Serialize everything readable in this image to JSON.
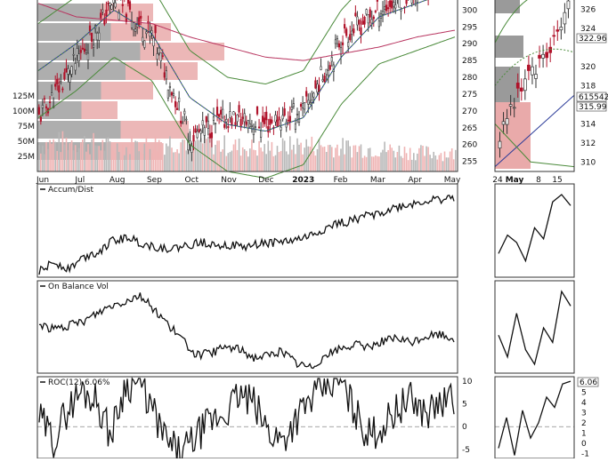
{
  "colors": {
    "up": "#333333",
    "down": "#b0122a",
    "vol_up": "#b8b8b8",
    "vol_down": "#efb4b4",
    "band": "#4a8a3a",
    "ma_blue": "#2a3a98",
    "ma_red": "#b8345f",
    "ind_line": "#111111",
    "ruler_zero": "#888888",
    "gray_block": "#9a9a9a",
    "red_block": "#e9aaaa"
  },
  "price_panel": {
    "x_labels": [
      "Jun",
      "Jul",
      "Aug",
      "Sep",
      "Oct",
      "Nov",
      "Dec",
      "2023",
      "Feb",
      "Mar",
      "Apr",
      "May"
    ],
    "right_ticks": [
      "300",
      "295",
      "290",
      "285",
      "280",
      "275",
      "270",
      "265",
      "260",
      "255"
    ],
    "volume_ticks": [
      "125M",
      "100M",
      "75M",
      "50M",
      "25M"
    ]
  },
  "zoom_panel": {
    "x_labels": [
      "24",
      "May",
      "8",
      "15"
    ],
    "right_ticks": [
      "326",
      "324",
      "320",
      "318",
      "314",
      "312",
      "310"
    ],
    "badges": [
      "322.96",
      "615542",
      "315.99"
    ]
  },
  "indicators": {
    "accum": {
      "title": "Accum/Dist"
    },
    "obv": {
      "title": "On Balance Vol"
    },
    "roc": {
      "title": "ROC(12) 6.06%",
      "ticks": [
        "10",
        "5",
        "0",
        "-5"
      ],
      "zoom_ticks": [
        "5",
        "4",
        "3",
        "2",
        "1",
        "0",
        "-1"
      ],
      "badge": "6.06"
    }
  },
  "chart_data": [
    {
      "type": "line",
      "name": "price",
      "x": [
        "Jun",
        "Jul",
        "Aug",
        "Sep",
        "Oct",
        "Nov",
        "Dec",
        "2023",
        "Feb",
        "Mar",
        "Apr",
        "May"
      ],
      "close": [
        268,
        285,
        303,
        292,
        262,
        268,
        266,
        270,
        292,
        300,
        306,
        311
      ],
      "ma_short": [
        282,
        290,
        300,
        293,
        274,
        266,
        264,
        268,
        286,
        298,
        302,
        306
      ],
      "ma_long": [
        302,
        298,
        297,
        296,
        292,
        289,
        286,
        285,
        287,
        289,
        292,
        294
      ],
      "volume": [
        42,
        48,
        38,
        44,
        50,
        40,
        36,
        42,
        38,
        36,
        30,
        28
      ],
      "ylim": [
        252,
        303
      ],
      "volume_ylim": [
        0,
        140
      ]
    },
    {
      "type": "line",
      "name": "zoom-price",
      "x": [
        "24",
        "May",
        "8",
        "15"
      ],
      "close": [
        312.5,
        318,
        321,
        327
      ],
      "ylim": [
        309,
        327
      ]
    },
    {
      "type": "line",
      "name": "accum-dist",
      "values": [
        10,
        22,
        14,
        28,
        35,
        48,
        52,
        44,
        40,
        38,
        42,
        46,
        44,
        42,
        40,
        45,
        46,
        48,
        52,
        60,
        68,
        72,
        78,
        82,
        88,
        92,
        96,
        98,
        100
      ]
    },
    {
      "type": "line",
      "name": "on-balance-volume",
      "values": [
        60,
        55,
        58,
        62,
        70,
        78,
        82,
        88,
        75,
        60,
        45,
        30,
        32,
        38,
        36,
        28,
        30,
        34,
        22,
        18,
        30,
        36,
        40,
        38,
        44,
        46,
        42,
        48,
        50,
        46
      ]
    },
    {
      "type": "line",
      "name": "roc",
      "values": [
        2,
        -3,
        4,
        8,
        6,
        -2,
        9,
        10,
        3,
        -4,
        -6,
        -2,
        1,
        3,
        7,
        5,
        -1,
        -3,
        2,
        6,
        9,
        10,
        4,
        -2,
        0,
        4,
        6,
        3,
        5,
        6.06
      ],
      "ylim": [
        -7,
        11
      ]
    }
  ]
}
